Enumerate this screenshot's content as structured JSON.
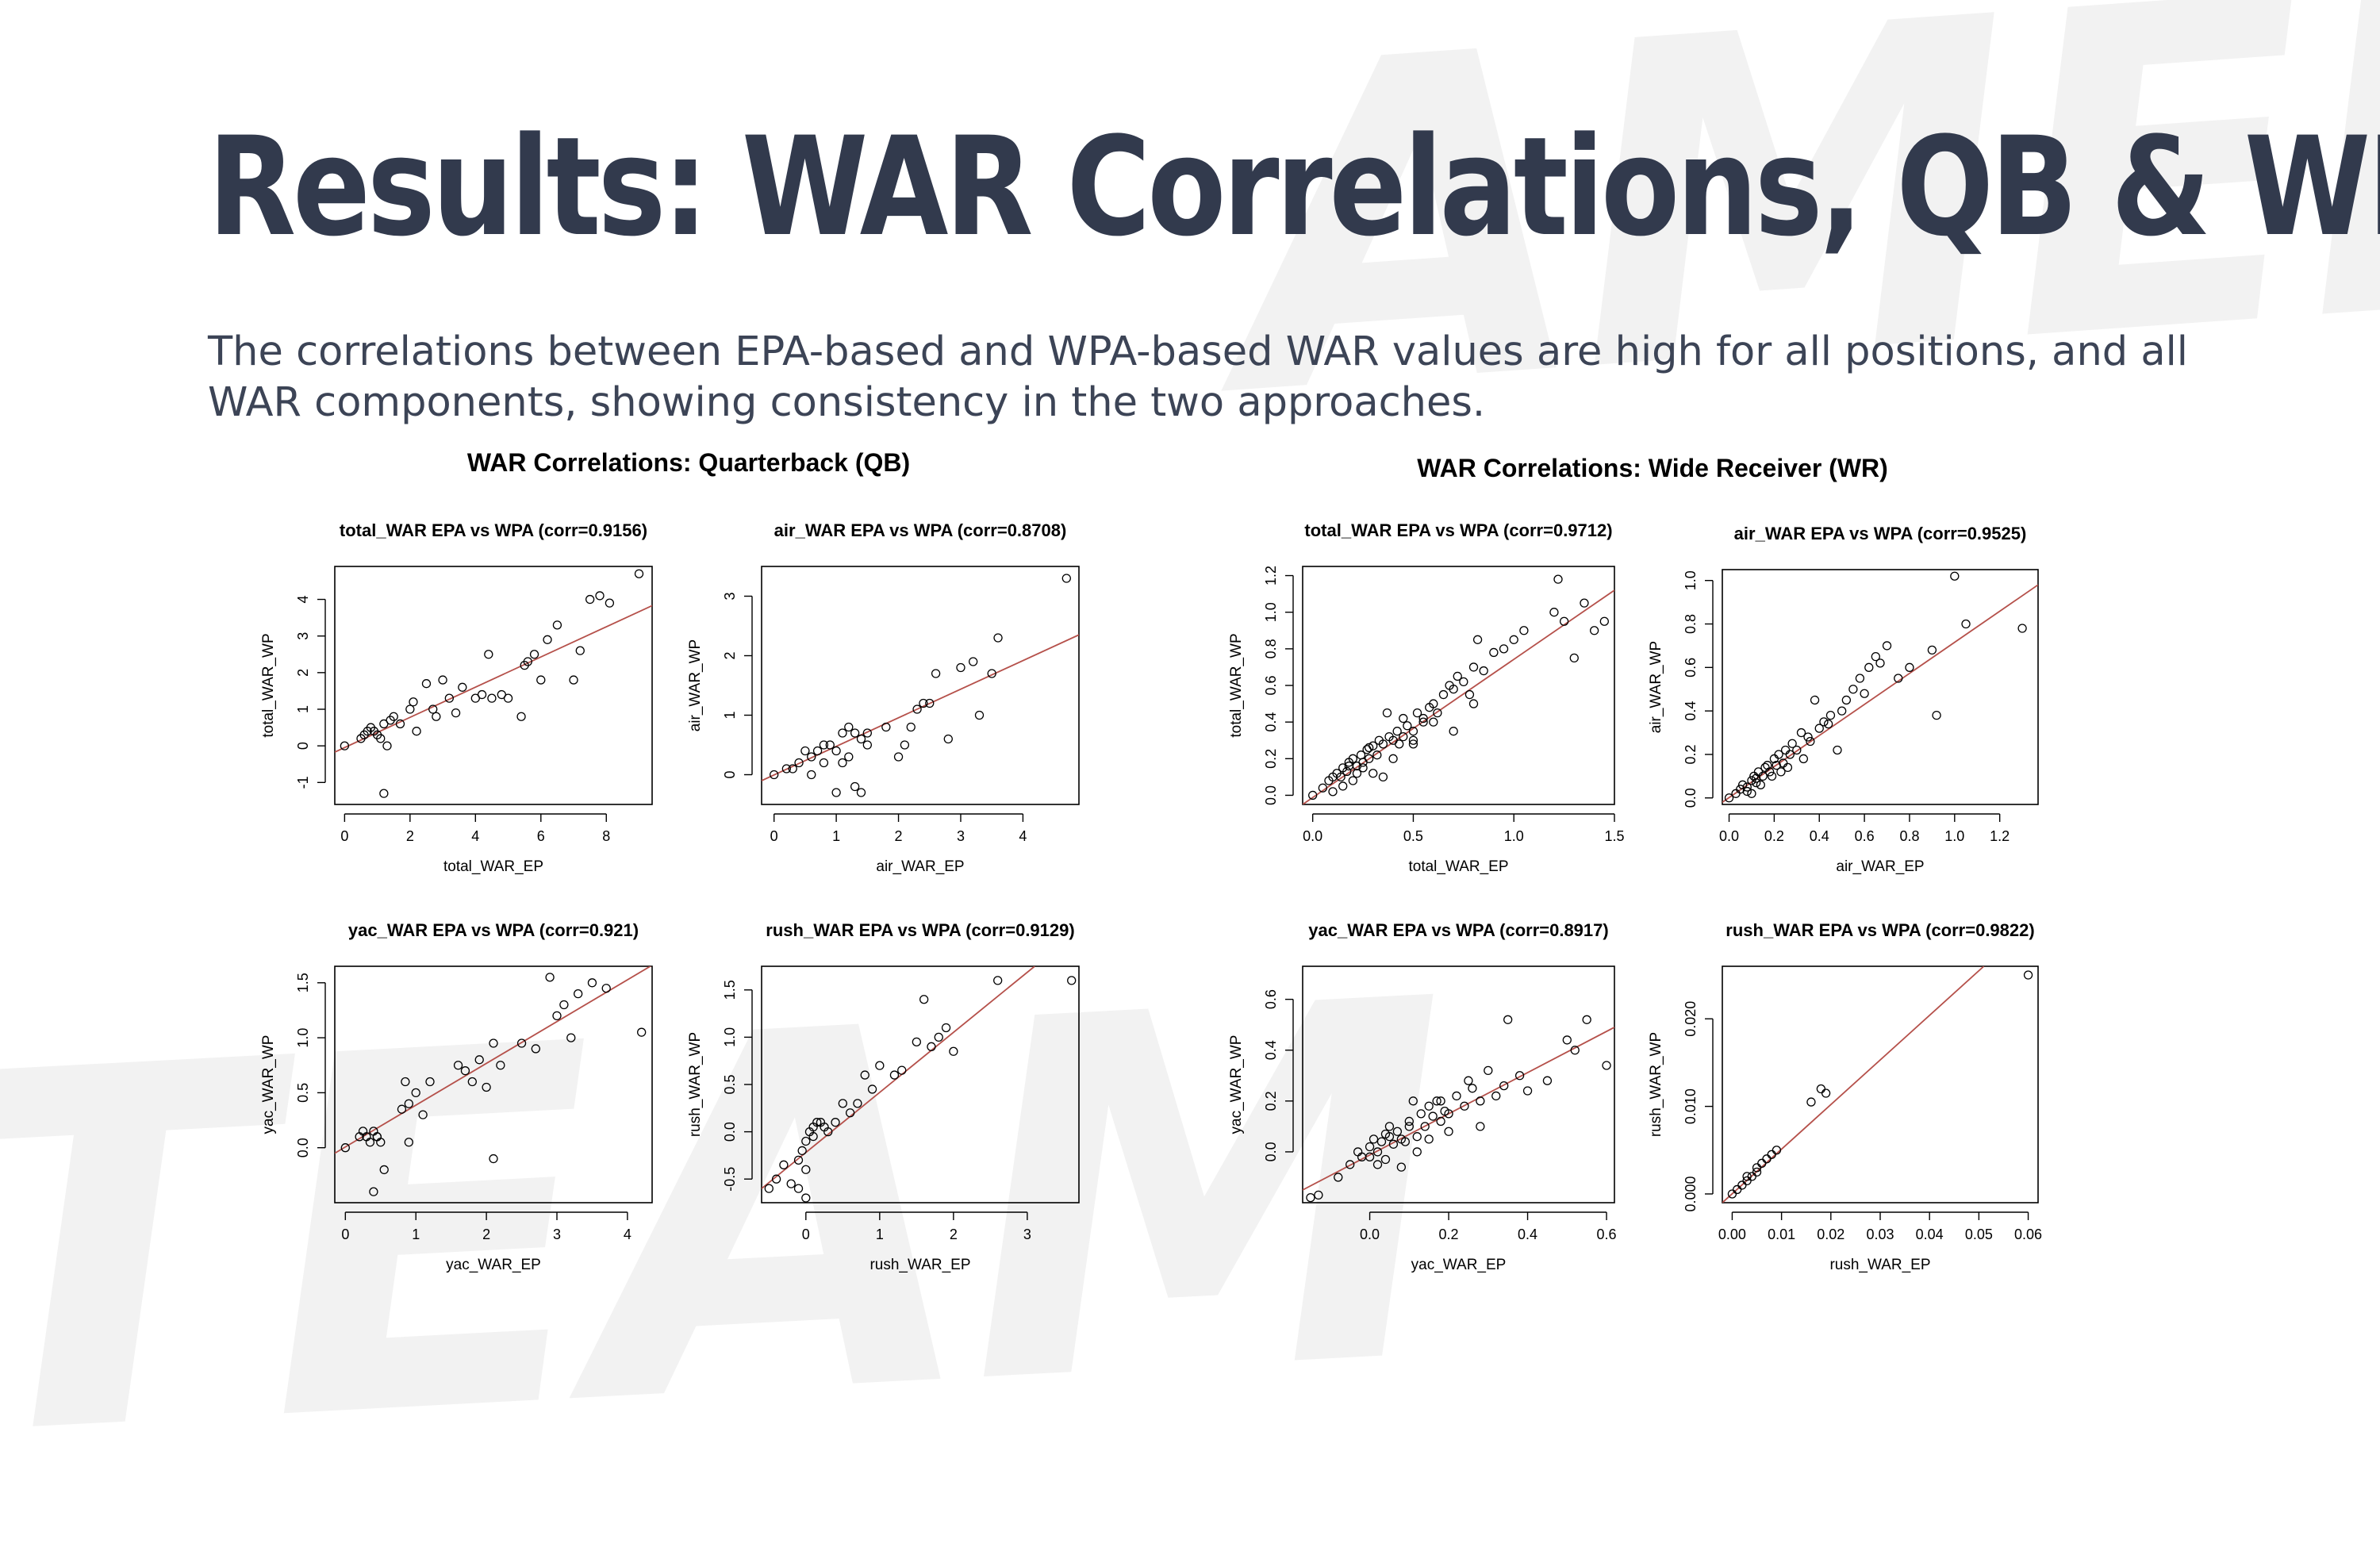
{
  "slide": {
    "title": "Results: WAR Correlations, QB & WR",
    "subtitle": "The correlations between EPA-based and WPA-based WAR values are high for all positions, and all WAR components, showing consistency in the two approaches.",
    "groups": [
      {
        "title": "WAR Correlations: Quarterback (QB)"
      },
      {
        "title": "WAR Correlations: Wide Receiver (WR)"
      }
    ]
  },
  "colors": {
    "title": "#323a4d",
    "fit_line": "#b5504a",
    "points": "#000000",
    "watermark": "#f2f2f2"
  },
  "chart_data": [
    {
      "type": "scatter",
      "group": "QB",
      "title": "total_WAR EPA vs WPA (corr=0.9156)",
      "xlabel": "total_WAR_EP",
      "ylabel": "total_WAR_WP",
      "xlim": [
        -0.3,
        9.4
      ],
      "ylim": [
        -1.6,
        4.9
      ],
      "xticks": [
        "0",
        "2",
        "4",
        "6",
        "8"
      ],
      "yticks": [
        "-1",
        "0",
        "1",
        "2",
        "3",
        "4"
      ],
      "xtick_values": [
        0,
        2,
        4,
        6,
        8
      ],
      "ytick_values": [
        -1,
        0,
        1,
        2,
        3,
        4
      ],
      "fit": [
        [
          -0.3,
          -0.17
        ],
        [
          9.4,
          3.83
        ]
      ],
      "x": [
        0,
        0.5,
        0.6,
        0.7,
        0.8,
        0.9,
        1.0,
        1.1,
        1.2,
        1.3,
        1.4,
        1.5,
        1.7,
        2.0,
        2.1,
        2.2,
        2.5,
        2.7,
        2.8,
        3.0,
        3.2,
        3.4,
        3.6,
        4.0,
        4.2,
        4.4,
        4.5,
        4.8,
        5.0,
        5.4,
        5.5,
        5.6,
        5.8,
        6.0,
        6.2,
        6.5,
        7.0,
        7.2,
        7.5,
        7.8,
        8.1,
        9.0,
        1.2
      ],
      "y": [
        0,
        0.2,
        0.3,
        0.4,
        0.5,
        0.4,
        0.3,
        0.2,
        0.6,
        0.0,
        0.7,
        0.8,
        0.6,
        1.0,
        1.2,
        0.4,
        1.7,
        1.0,
        0.8,
        1.8,
        1.3,
        0.9,
        1.6,
        1.3,
        1.4,
        2.5,
        1.3,
        1.4,
        1.3,
        0.8,
        2.2,
        2.3,
        2.5,
        1.8,
        2.9,
        3.3,
        1.8,
        2.6,
        4.0,
        4.1,
        3.9,
        4.7,
        -1.3
      ]
    },
    {
      "type": "scatter",
      "group": "QB",
      "title": "air_WAR EPA vs WPA (corr=0.8708)",
      "xlabel": "air_WAR_EP",
      "ylabel": "air_WAR_WP",
      "xlim": [
        -0.2,
        4.9
      ],
      "ylim": [
        -0.5,
        3.5
      ],
      "xticks": [
        "0",
        "1",
        "2",
        "3",
        "4"
      ],
      "yticks": [
        "0",
        "1",
        "2",
        "3"
      ],
      "xtick_values": [
        0,
        1,
        2,
        3,
        4
      ],
      "ytick_values": [
        0,
        1,
        2,
        3
      ],
      "fit": [
        [
          -0.2,
          -0.1
        ],
        [
          4.9,
          2.35
        ]
      ],
      "x": [
        0,
        0.2,
        0.3,
        0.4,
        0.5,
        0.6,
        0.6,
        0.7,
        0.8,
        0.8,
        0.9,
        1.0,
        1.0,
        1.1,
        1.1,
        1.2,
        1.2,
        1.3,
        1.4,
        1.4,
        1.5,
        1.5,
        1.8,
        2.0,
        2.1,
        2.2,
        2.3,
        2.4,
        2.5,
        2.6,
        2.8,
        3.0,
        3.2,
        3.3,
        3.5,
        3.6,
        4.7,
        1.3
      ],
      "y": [
        0,
        0.1,
        0.1,
        0.2,
        0.4,
        0.3,
        0.0,
        0.4,
        0.5,
        0.2,
        0.5,
        0.4,
        -0.3,
        0.7,
        0.2,
        0.8,
        0.3,
        0.7,
        0.6,
        -0.3,
        0.5,
        0.7,
        0.8,
        0.3,
        0.5,
        0.8,
        1.1,
        1.2,
        1.2,
        1.7,
        0.6,
        1.8,
        1.9,
        1.0,
        1.7,
        2.3,
        3.3,
        -0.2
      ]
    },
    {
      "type": "scatter",
      "group": "QB",
      "title": "yac_WAR EPA vs WPA (corr=0.921)",
      "xlabel": "yac_WAR_EP",
      "ylabel": "yac_WAR_WP",
      "xlim": [
        -0.15,
        4.35
      ],
      "ylim": [
        -0.5,
        1.65
      ],
      "xticks": [
        "0",
        "1",
        "2",
        "3",
        "4"
      ],
      "yticks": [
        "0.0",
        "0.5",
        "1.0",
        "1.5"
      ],
      "xtick_values": [
        0,
        1,
        2,
        3,
        4
      ],
      "ytick_values": [
        0,
        0.5,
        1.0,
        1.5
      ],
      "fit": [
        [
          -0.15,
          -0.05
        ],
        [
          4.35,
          1.66
        ]
      ],
      "x": [
        0,
        0.2,
        0.25,
        0.3,
        0.35,
        0.4,
        0.45,
        0.5,
        0.55,
        0.4,
        0.45,
        0.8,
        0.85,
        0.9,
        1.0,
        1.1,
        1.2,
        1.6,
        1.7,
        1.8,
        1.9,
        2.0,
        2.1,
        2.2,
        2.5,
        2.7,
        2.9,
        3.0,
        3.1,
        3.2,
        3.3,
        3.5,
        3.7,
        4.2,
        0.9,
        2.1
      ],
      "y": [
        0,
        0.1,
        0.15,
        0.1,
        0.05,
        0.15,
        0.1,
        0.05,
        -0.2,
        -0.4,
        0.1,
        0.35,
        0.6,
        0.4,
        0.5,
        0.3,
        0.6,
        0.75,
        0.7,
        0.6,
        0.8,
        0.55,
        0.95,
        0.75,
        0.95,
        0.9,
        1.55,
        1.2,
        1.3,
        1.0,
        1.4,
        1.5,
        1.45,
        1.05,
        0.05,
        -0.1
      ]
    },
    {
      "type": "scatter",
      "group": "QB",
      "title": "rush_WAR EPA vs WPA (corr=0.9129)",
      "xlabel": "rush_WAR_EP",
      "ylabel": "rush_WAR_WP",
      "xlim": [
        -0.6,
        3.7
      ],
      "ylim": [
        -0.75,
        1.75
      ],
      "xticks": [
        "0",
        "1",
        "2",
        "3"
      ],
      "yticks": [
        "-0.5",
        "0.0",
        "0.5",
        "1.0",
        "1.5"
      ],
      "xtick_values": [
        0,
        1,
        2,
        3
      ],
      "ytick_values": [
        -0.5,
        0,
        0.5,
        1.0,
        1.5
      ],
      "fit": [
        [
          -0.6,
          -0.6
        ],
        [
          3.1,
          1.75
        ]
      ],
      "x": [
        -0.5,
        -0.4,
        -0.3,
        -0.2,
        -0.1,
        -0.1,
        0,
        0,
        0.05,
        0.1,
        0.1,
        0.15,
        0.2,
        0.25,
        0.3,
        0.4,
        0.5,
        0.6,
        0.7,
        0.8,
        0.9,
        1.0,
        1.2,
        1.3,
        1.5,
        1.6,
        1.7,
        1.8,
        1.9,
        2.0,
        2.6,
        3.6,
        0,
        -0.05
      ],
      "y": [
        -0.6,
        -0.5,
        -0.35,
        -0.55,
        -0.3,
        -0.6,
        -0.1,
        -0.4,
        0.0,
        0.05,
        -0.05,
        0.1,
        0.1,
        0.05,
        0.0,
        0.1,
        0.3,
        0.2,
        0.3,
        0.6,
        0.45,
        0.7,
        0.6,
        0.65,
        0.95,
        1.4,
        0.9,
        1.0,
        1.1,
        0.85,
        1.6,
        1.6,
        -0.7,
        -0.2
      ]
    },
    {
      "type": "scatter",
      "group": "WR",
      "title": "total_WAR EPA vs WPA (corr=0.9712)",
      "xlabel": "total_WAR_EP",
      "ylabel": "total_WAR_WP",
      "xlim": [
        -0.05,
        1.5
      ],
      "ylim": [
        -0.05,
        1.25
      ],
      "xticks": [
        "0.0",
        "0.5",
        "1.0",
        "1.5"
      ],
      "yticks": [
        "0.0",
        "0.2",
        "0.4",
        "0.6",
        "0.8",
        "1.0",
        "1.2"
      ],
      "xtick_values": [
        0,
        0.5,
        1.0,
        1.5
      ],
      "ytick_values": [
        0,
        0.2,
        0.4,
        0.6,
        0.8,
        1.0,
        1.2
      ],
      "fit": [
        [
          -0.05,
          -0.05
        ],
        [
          1.5,
          1.12
        ]
      ],
      "x": [
        0,
        0.05,
        0.08,
        0.1,
        0.12,
        0.14,
        0.15,
        0.17,
        0.18,
        0.2,
        0.22,
        0.24,
        0.25,
        0.27,
        0.28,
        0.3,
        0.32,
        0.33,
        0.35,
        0.37,
        0.38,
        0.4,
        0.42,
        0.43,
        0.45,
        0.47,
        0.5,
        0.52,
        0.55,
        0.58,
        0.6,
        0.62,
        0.65,
        0.68,
        0.7,
        0.72,
        0.75,
        0.78,
        0.8,
        0.82,
        0.85,
        0.9,
        0.95,
        1.0,
        1.05,
        1.2,
        1.22,
        1.25,
        1.3,
        1.35,
        1.4,
        1.45,
        0.1,
        0.2,
        0.3,
        0.4,
        0.5,
        0.15,
        0.25,
        0.35,
        0.45,
        0.6,
        0.7,
        0.8,
        0.18,
        0.22,
        0.28,
        0.5,
        0.55
      ],
      "y": [
        0,
        0.04,
        0.08,
        0.1,
        0.12,
        0.1,
        0.15,
        0.13,
        0.18,
        0.2,
        0.16,
        0.22,
        0.18,
        0.25,
        0.2,
        0.27,
        0.22,
        0.3,
        0.28,
        0.45,
        0.32,
        0.3,
        0.35,
        0.28,
        0.42,
        0.38,
        0.35,
        0.45,
        0.4,
        0.48,
        0.5,
        0.45,
        0.55,
        0.6,
        0.58,
        0.65,
        0.62,
        0.55,
        0.7,
        0.85,
        0.68,
        0.78,
        0.8,
        0.85,
        0.9,
        1.0,
        1.18,
        0.95,
        0.75,
        1.05,
        0.9,
        0.95,
        0.02,
        0.08,
        0.12,
        0.2,
        0.28,
        0.05,
        0.15,
        0.1,
        0.32,
        0.4,
        0.35,
        0.5,
        0.16,
        0.12,
        0.26,
        0.3,
        0.42
      ]
    },
    {
      "type": "scatter",
      "group": "WR",
      "title": "air_WAR EPA vs WPA (corr=0.9525)",
      "xlabel": "air_WAR_EP",
      "ylabel": "air_WAR_WP",
      "xlim": [
        -0.03,
        1.37
      ],
      "ylim": [
        -0.03,
        1.05
      ],
      "xticks": [
        "0.0",
        "0.2",
        "0.4",
        "0.6",
        "0.8",
        "1.0",
        "1.2"
      ],
      "yticks": [
        "0.0",
        "0.2",
        "0.4",
        "0.6",
        "0.8",
        "1.0"
      ],
      "xtick_values": [
        0,
        0.2,
        0.4,
        0.6,
        0.8,
        1.0,
        1.2
      ],
      "ytick_values": [
        0,
        0.2,
        0.4,
        0.6,
        0.8,
        1.0
      ],
      "fit": [
        [
          -0.03,
          -0.02
        ],
        [
          1.37,
          0.98
        ]
      ],
      "x": [
        0,
        0.03,
        0.05,
        0.06,
        0.08,
        0.1,
        0.11,
        0.12,
        0.13,
        0.15,
        0.16,
        0.18,
        0.2,
        0.21,
        0.22,
        0.24,
        0.25,
        0.27,
        0.28,
        0.3,
        0.32,
        0.35,
        0.38,
        0.4,
        0.42,
        0.45,
        0.48,
        0.5,
        0.52,
        0.55,
        0.58,
        0.6,
        0.62,
        0.65,
        0.67,
        0.7,
        0.75,
        0.8,
        0.9,
        0.92,
        1.0,
        1.05,
        1.3,
        0.1,
        0.14,
        0.19,
        0.23,
        0.26,
        0.33,
        0.36,
        0.44,
        0.08,
        0.12,
        0.17
      ],
      "y": [
        0,
        0.02,
        0.04,
        0.06,
        0.05,
        0.08,
        0.1,
        0.07,
        0.12,
        0.1,
        0.14,
        0.12,
        0.18,
        0.15,
        0.2,
        0.16,
        0.22,
        0.2,
        0.25,
        0.22,
        0.3,
        0.28,
        0.45,
        0.32,
        0.35,
        0.38,
        0.22,
        0.4,
        0.45,
        0.5,
        0.55,
        0.48,
        0.6,
        0.65,
        0.62,
        0.7,
        0.55,
        0.6,
        0.68,
        0.38,
        1.02,
        0.8,
        0.78,
        0.02,
        0.06,
        0.1,
        0.12,
        0.14,
        0.18,
        0.26,
        0.34,
        0.03,
        0.09,
        0.15
      ]
    },
    {
      "type": "scatter",
      "group": "WR",
      "title": "yac_WAR EPA vs WPA (corr=0.8917)",
      "xlabel": "yac_WAR_EP",
      "ylabel": "yac_WAR_WP",
      "xlim": [
        -0.17,
        0.62
      ],
      "ylim": [
        -0.2,
        0.73
      ],
      "xticks": [
        "0.0",
        "0.2",
        "0.4",
        "0.6"
      ],
      "yticks": [
        "0.0",
        "0.2",
        "0.4",
        "0.6"
      ],
      "xtick_values": [
        0,
        0.2,
        0.4,
        0.6
      ],
      "ytick_values": [
        0,
        0.2,
        0.4,
        0.6
      ],
      "fit": [
        [
          -0.17,
          -0.15
        ],
        [
          0.62,
          0.49
        ]
      ],
      "x": [
        -0.15,
        -0.13,
        -0.08,
        -0.05,
        -0.03,
        -0.02,
        0,
        0.01,
        0.02,
        0.03,
        0.04,
        0.05,
        0.06,
        0.07,
        0.08,
        0.09,
        0.1,
        0.11,
        0.12,
        0.13,
        0.14,
        0.15,
        0.16,
        0.17,
        0.18,
        0.19,
        0.2,
        0.22,
        0.24,
        0.26,
        0.28,
        0.3,
        0.32,
        0.34,
        0.35,
        0.38,
        0.4,
        0.45,
        0.5,
        0.52,
        0.55,
        0.6,
        0.02,
        0.05,
        0.08,
        0.1,
        0.15,
        0.2,
        0.25,
        0.0,
        0.04,
        0.12,
        0.18,
        0.28
      ],
      "y": [
        -0.18,
        -0.17,
        -0.1,
        -0.05,
        0.0,
        -0.02,
        0.02,
        0.05,
        0.0,
        0.04,
        -0.03,
        0.06,
        0.03,
        0.08,
        0.05,
        0.04,
        0.1,
        0.2,
        0.06,
        0.15,
        0.1,
        0.18,
        0.14,
        0.2,
        0.12,
        0.16,
        0.15,
        0.22,
        0.18,
        0.25,
        0.2,
        0.32,
        0.22,
        0.26,
        0.52,
        0.3,
        0.24,
        0.28,
        0.44,
        0.4,
        0.52,
        0.34,
        -0.05,
        0.1,
        -0.06,
        0.12,
        0.05,
        0.08,
        0.28,
        -0.02,
        0.07,
        0.0,
        0.2,
        0.1
      ]
    },
    {
      "type": "scatter",
      "group": "WR",
      "title": "rush_WAR EPA vs WPA (corr=0.9822)",
      "xlabel": "rush_WAR_EP",
      "ylabel": "rush_WAR_WP",
      "xlim": [
        -0.002,
        0.062
      ],
      "ylim": [
        -0.001,
        0.026
      ],
      "xticks": [
        "0.00",
        "0.01",
        "0.02",
        "0.03",
        "0.04",
        "0.05",
        "0.06"
      ],
      "yticks": [
        "0.000",
        "0.010",
        "0.020"
      ],
      "xtick_values": [
        0,
        0.01,
        0.02,
        0.03,
        0.04,
        0.05,
        0.06
      ],
      "ytick_values": [
        0,
        0.01,
        0.02
      ],
      "fit": [
        [
          -0.002,
          -0.001
        ],
        [
          0.051,
          0.026
        ]
      ],
      "x": [
        0,
        0.001,
        0.002,
        0.003,
        0.003,
        0.004,
        0.005,
        0.005,
        0.006,
        0.007,
        0.008,
        0.009,
        0.016,
        0.018,
        0.019,
        0.06
      ],
      "y": [
        0,
        0.0005,
        0.001,
        0.0015,
        0.002,
        0.002,
        0.0025,
        0.003,
        0.0035,
        0.004,
        0.0045,
        0.005,
        0.0105,
        0.012,
        0.0115,
        0.025
      ]
    }
  ]
}
